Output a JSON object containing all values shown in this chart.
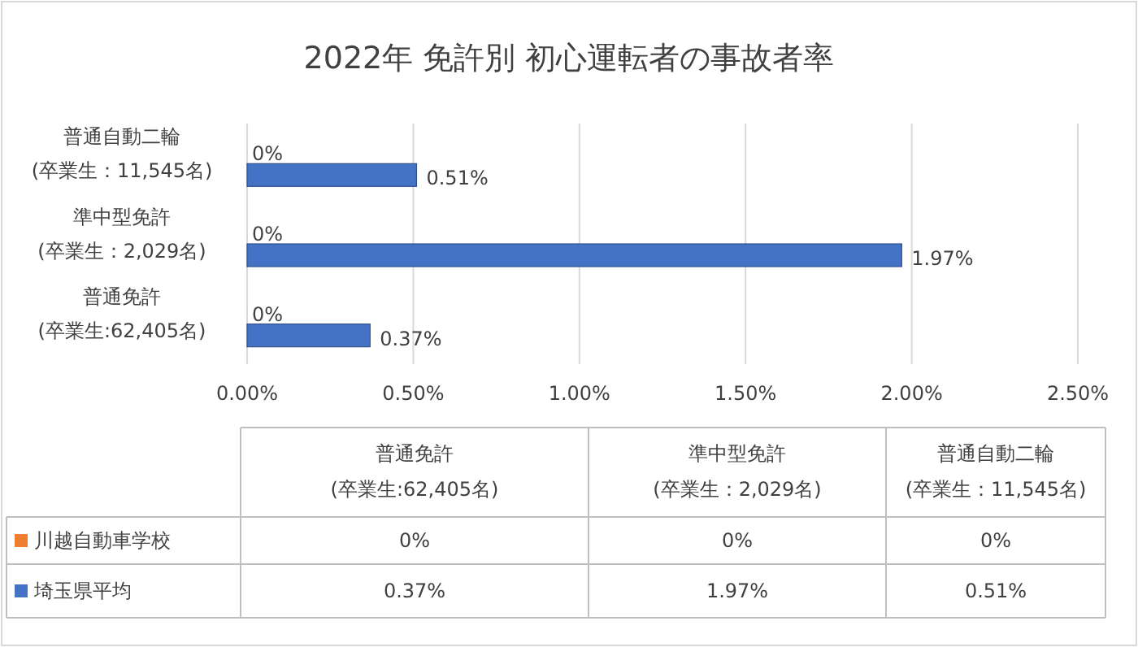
{
  "chart_data": {
    "type": "bar",
    "orientation": "horizontal",
    "title": "2022年 免許別 初心運転者の事故者率",
    "categories": [
      "普通自動二輪\n(卒業生：11,545名)",
      "準中型免許\n(卒業生：2,029名)",
      "普通免許\n(卒業生:62,405名)"
    ],
    "series": [
      {
        "name": "川越自動車学校",
        "color": "#ed7d31",
        "values": [
          0,
          0,
          0
        ],
        "value_labels": [
          "0%",
          "0%",
          "0%"
        ]
      },
      {
        "name": "埼玉県平均",
        "color": "#4472c4",
        "values": [
          0.51,
          1.97,
          0.37
        ],
        "value_labels": [
          "0.51%",
          "1.97%",
          "0.37%"
        ]
      }
    ],
    "xlim": [
      0,
      2.5
    ],
    "xticks": [
      {
        "value": 0,
        "label": "0.00%"
      },
      {
        "value": 0.5,
        "label": "0.50%"
      },
      {
        "value": 1,
        "label": "1.00%"
      },
      {
        "value": 1.5,
        "label": "1.50%"
      },
      {
        "value": 2,
        "label": "2.00%"
      },
      {
        "value": 2.5,
        "label": "2.50%"
      }
    ],
    "grid": "x",
    "legend": "bottom"
  }
}
